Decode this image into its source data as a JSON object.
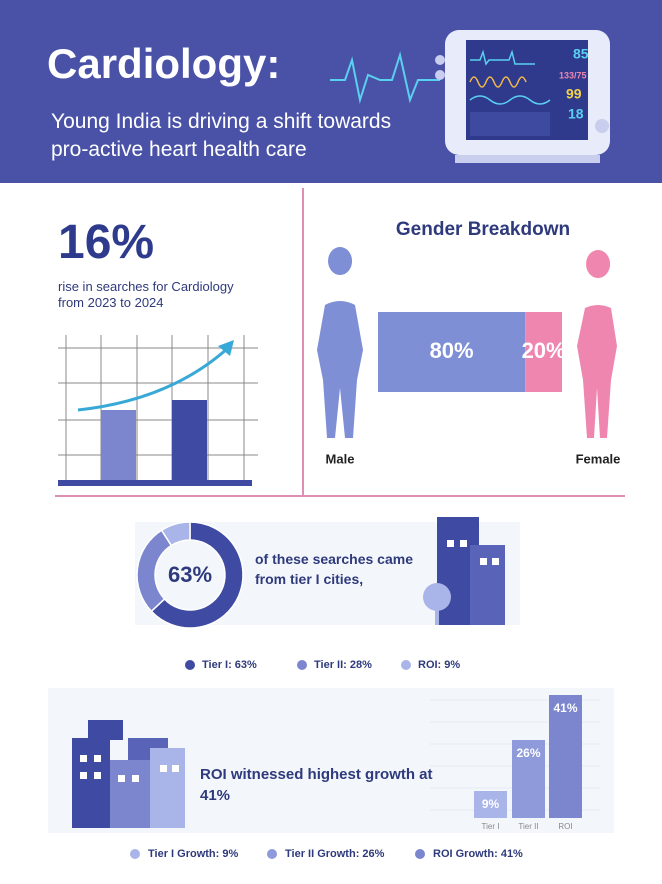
{
  "header": {
    "title": "Cardiology:",
    "subtitle": "Young India is driving a shift towards pro-active heart health care",
    "monitor": [
      "85",
      "133/75",
      "99",
      "18"
    ]
  },
  "rise": {
    "value_label": "16%",
    "text": "rise in searches for Cardiology from 2023 to 2024"
  },
  "chart_data": [
    {
      "type": "stacked-bar",
      "title": "Gender Breakdown",
      "categories": [
        "Male",
        "Female"
      ],
      "values": [
        80,
        20
      ],
      "value_labels": [
        "80%",
        "20%"
      ],
      "colors": [
        "#7f8fd6",
        "#ef86b0"
      ]
    },
    {
      "type": "donut",
      "center_label": "63%",
      "annotation": "of these searches came from tier I cities,",
      "categories": [
        "Tier I: 63%",
        "Tier II: 28%",
        "ROI: 9%"
      ],
      "values": [
        63,
        28,
        9
      ],
      "colors": [
        "#3f4aa3",
        "#7b86cf",
        "#a9b4e8"
      ]
    },
    {
      "type": "bar",
      "annotation": "ROI witnessed highest growth at 41%",
      "categories": [
        "Tier I",
        "Tier II",
        "ROI"
      ],
      "values": [
        9,
        26,
        41
      ],
      "value_labels": [
        "9%",
        "26%",
        "41%"
      ],
      "legend": [
        "Tier I Growth: 9%",
        "Tier II Growth: 26%",
        "ROI Growth: 41%"
      ],
      "colors": [
        "#a9b4e8",
        "#8e9ad9",
        "#7b86cf"
      ]
    }
  ]
}
